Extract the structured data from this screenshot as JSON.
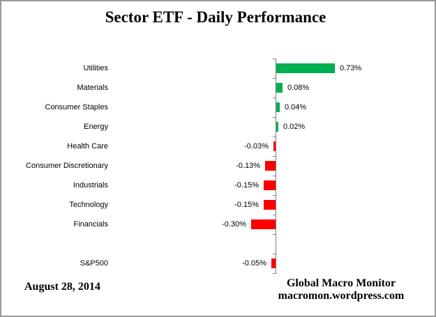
{
  "title": "Sector ETF - Daily Performance",
  "footer": {
    "date": "August 28, 2014",
    "source_line1": "Global Macro Monitor",
    "source_line2": "macromon.wordpress.com"
  },
  "colors": {
    "positive_bar": "#00B050",
    "negative_bar": "#FF0000",
    "axis": "#808080",
    "text": "#000000"
  },
  "chart_data": {
    "type": "bar",
    "orientation": "horizontal",
    "title": "Sector ETF - Daily Performance",
    "categories": [
      "Utilities",
      "Materials",
      "Consumer Staples",
      "Energy",
      "Health Care",
      "Consumer Discretionary",
      "Industrials",
      "Technology",
      "Financials",
      "S&P500"
    ],
    "values": [
      0.73,
      0.08,
      0.04,
      0.02,
      -0.03,
      -0.13,
      -0.15,
      -0.15,
      -0.3,
      -0.05
    ],
    "value_labels": [
      "0.73%",
      "0.08%",
      "0.04%",
      "0.02%",
      "-0.03%",
      "-0.13%",
      "-0.15%",
      "-0.15%",
      "-0.30%",
      "-0.05%"
    ],
    "unit": "%",
    "xlabel": "",
    "ylabel": "",
    "grid": false,
    "legend": false,
    "data_labels": "outside-end",
    "gap_row_before_last_category": true,
    "positive_color": "#00B050",
    "negative_color": "#FF0000"
  }
}
